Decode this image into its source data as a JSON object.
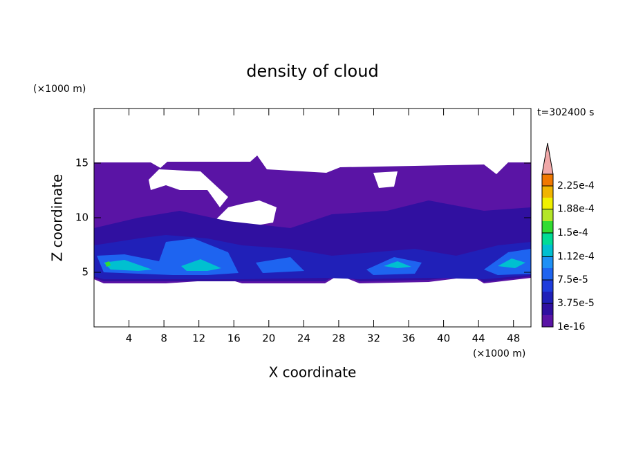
{
  "chart_data": {
    "type": "contour",
    "title": "density of cloud",
    "x_label": "X coordinate",
    "y_label": "Z coordinate",
    "x_unit": "(×1000 m)",
    "y_unit": "(×1000 m)",
    "annotation": "t=302400 s",
    "xlim": [
      0,
      50
    ],
    "xticks": [
      4,
      8,
      12,
      16,
      20,
      24,
      28,
      32,
      36,
      40,
      44,
      48
    ],
    "ylim": [
      0,
      20
    ],
    "yticks": [
      5,
      10,
      15
    ],
    "colorbar": {
      "lim": [
        1e-16,
        0.00024375
      ],
      "ticks": [
        {
          "value": 1e-16,
          "label": "1e-16"
        },
        {
          "value": 3.75e-05,
          "label": "3.75e-5"
        },
        {
          "value": 7.5e-05,
          "label": "7.5e-5"
        },
        {
          "value": 0.000112,
          "label": "1.12e-4"
        },
        {
          "value": 0.00015,
          "label": "1.5e-4"
        },
        {
          "value": 0.000188,
          "label": "1.88e-4"
        },
        {
          "value": 0.000225,
          "label": "2.25e-4"
        }
      ],
      "colors": [
        "#5a14a5",
        "#3010a0",
        "#2020b8",
        "#1e3cdc",
        "#1e64f0",
        "#1e90f5",
        "#00c0d0",
        "#00dc96",
        "#32dc32",
        "#b4e628",
        "#f0f000",
        "#f0b400",
        "#f07800",
        "#e61e1e"
      ],
      "extend_color": "#f0a8a8"
    }
  }
}
